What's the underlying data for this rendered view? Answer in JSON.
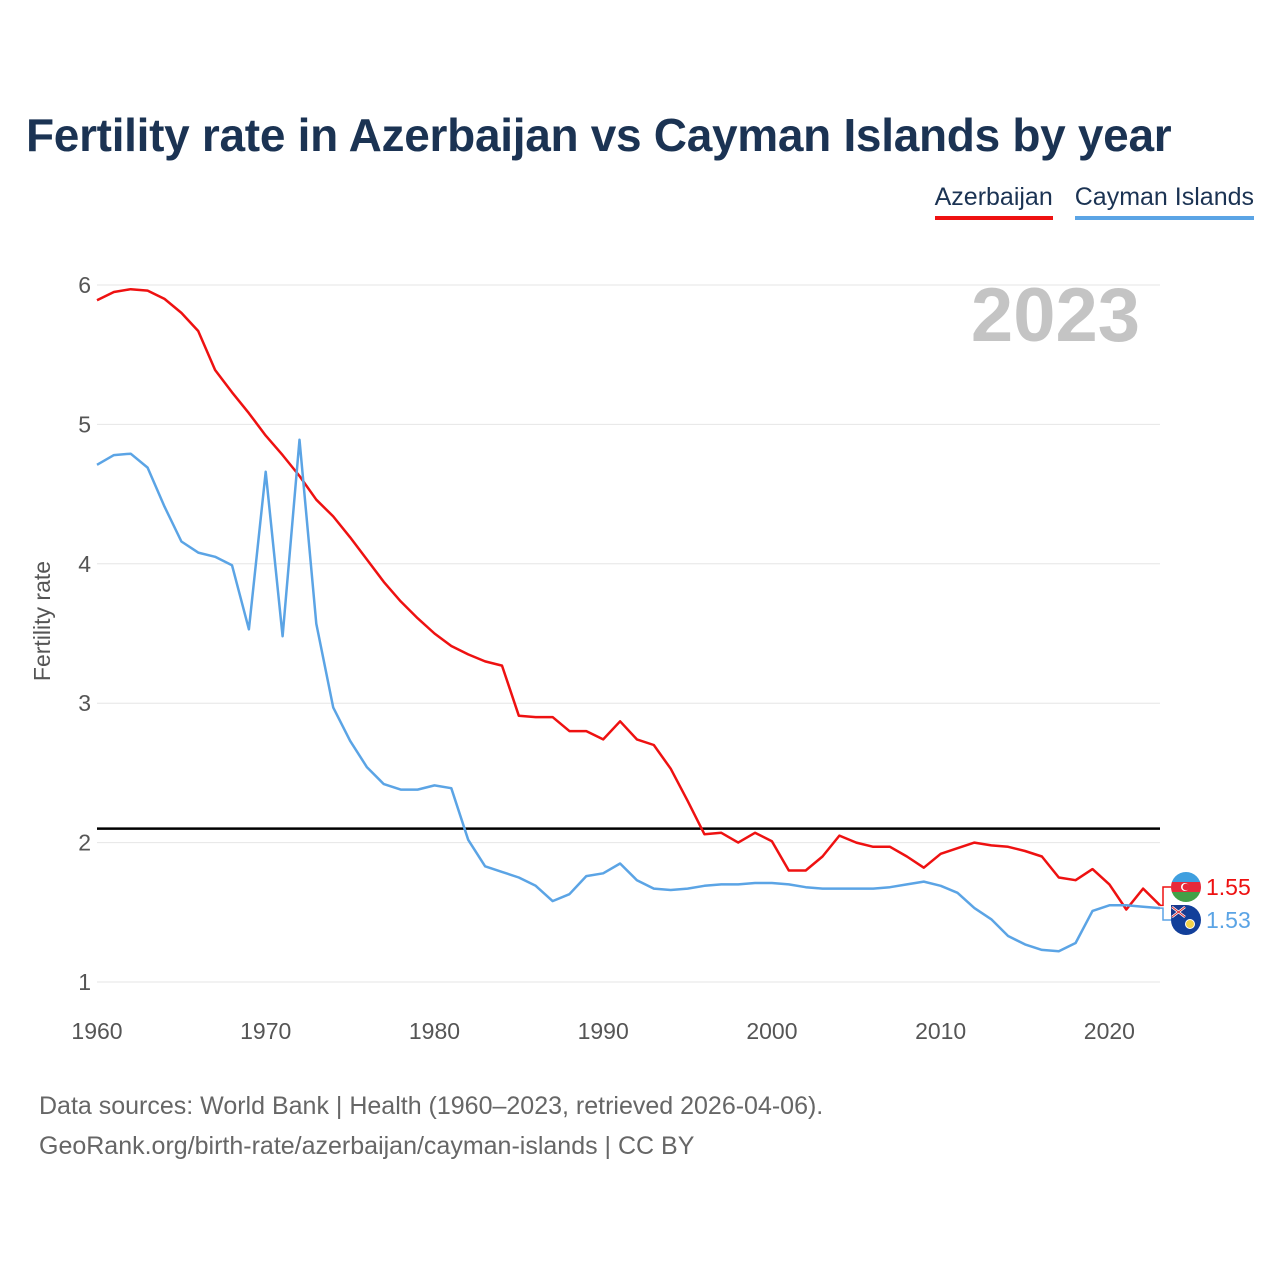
{
  "page": {
    "title": "Fertility rate in Azerbaijan vs Cayman Islands by year",
    "footer": {
      "source": "Data sources: World Bank | Health (1960–2023, retrieved 2026-04-06).",
      "credit": "GeoRank.org/birth-rate/azerbaijan/cayman-islands | CC BY"
    }
  },
  "chart_data": {
    "type": "line",
    "title": "Fertility rate in Azerbaijan vs Cayman Islands by year",
    "xlabel": "",
    "ylabel": "Fertility rate",
    "xlim": [
      1960,
      2023
    ],
    "ylim": [
      1,
      6
    ],
    "x_ticks": [
      1960,
      1970,
      1980,
      1990,
      2000,
      2010,
      2020
    ],
    "y_ticks": [
      1,
      2,
      3,
      4,
      5,
      6
    ],
    "grid": true,
    "year_label": "2023",
    "reference_line": {
      "value": 2.1,
      "color": "#000000"
    },
    "x": [
      1960,
      1961,
      1962,
      1963,
      1964,
      1965,
      1966,
      1967,
      1968,
      1969,
      1970,
      1971,
      1972,
      1973,
      1974,
      1975,
      1976,
      1977,
      1978,
      1979,
      1980,
      1981,
      1982,
      1983,
      1984,
      1985,
      1986,
      1987,
      1988,
      1989,
      1990,
      1991,
      1992,
      1993,
      1994,
      1995,
      1996,
      1997,
      1998,
      1999,
      2000,
      2001,
      2002,
      2003,
      2004,
      2005,
      2006,
      2007,
      2008,
      2009,
      2010,
      2011,
      2012,
      2013,
      2014,
      2015,
      2016,
      2017,
      2018,
      2019,
      2020,
      2021,
      2022,
      2023
    ],
    "series": [
      {
        "name": "Azerbaijan",
        "color": "#ee1111",
        "end_label": "1.55",
        "flag_icon": "azerbaijan-flag-icon",
        "values": [
          5.89,
          5.95,
          5.97,
          5.96,
          5.9,
          5.8,
          5.67,
          5.39,
          5.23,
          5.08,
          4.92,
          4.78,
          4.63,
          4.46,
          4.34,
          4.19,
          4.03,
          3.87,
          3.73,
          3.61,
          3.5,
          3.41,
          3.35,
          3.3,
          3.27,
          2.91,
          2.9,
          2.9,
          2.8,
          2.8,
          2.74,
          2.87,
          2.74,
          2.7,
          2.53,
          2.3,
          2.06,
          2.07,
          2.0,
          2.07,
          2.01,
          1.8,
          1.8,
          1.9,
          2.05,
          2.0,
          1.97,
          1.97,
          1.9,
          1.82,
          1.92,
          1.96,
          2.0,
          1.98,
          1.97,
          1.94,
          1.9,
          1.75,
          1.73,
          1.81,
          1.7,
          1.52,
          1.67,
          1.55
        ]
      },
      {
        "name": "Cayman Islands",
        "color": "#5ba4e5",
        "end_label": "1.53",
        "flag_icon": "cayman-islands-flag-icon",
        "values": [
          4.71,
          4.78,
          4.79,
          4.69,
          4.41,
          4.16,
          4.08,
          4.05,
          3.99,
          3.53,
          4.66,
          3.48,
          4.89,
          3.57,
          2.97,
          2.73,
          2.54,
          2.42,
          2.38,
          2.38,
          2.41,
          2.39,
          2.02,
          1.83,
          1.79,
          1.75,
          1.69,
          1.58,
          1.63,
          1.76,
          1.78,
          1.85,
          1.73,
          1.67,
          1.66,
          1.67,
          1.69,
          1.7,
          1.7,
          1.71,
          1.71,
          1.7,
          1.68,
          1.67,
          1.67,
          1.67,
          1.67,
          1.68,
          1.7,
          1.72,
          1.69,
          1.64,
          1.53,
          1.45,
          1.33,
          1.27,
          1.23,
          1.22,
          1.28,
          1.51,
          1.55,
          1.55,
          1.54,
          1.53
        ]
      }
    ]
  }
}
